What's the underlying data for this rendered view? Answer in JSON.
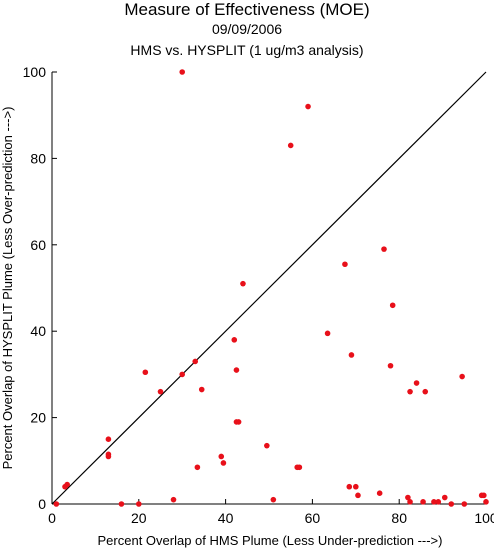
{
  "chart_data": {
    "type": "scatter",
    "title": "Measure of Effectiveness (MOE)",
    "subtitle": "09/09/2006",
    "subtitle2": "HMS vs. HYSPLIT  (1 ug/m3 analysis)",
    "xlabel": "Percent Overlap of HMS Plume (Less Under-prediction --->)",
    "ylabel": "Percent Overlap of HYSPLIT Plume (Less Over-prediction --->)",
    "xlim": [
      0,
      100
    ],
    "ylim": [
      0,
      100
    ],
    "xticks": [
      0,
      20,
      40,
      60,
      80,
      100
    ],
    "yticks": [
      0,
      20,
      40,
      60,
      80,
      100
    ],
    "reference_line": "y = x",
    "grid": false,
    "colors": {
      "points": "#e8101a",
      "axis": "#000000",
      "line": "#000000"
    },
    "points": [
      [
        1,
        0
      ],
      [
        3,
        4
      ],
      [
        3.5,
        4.5
      ],
      [
        13,
        15
      ],
      [
        13,
        11.5
      ],
      [
        13,
        11
      ],
      [
        16,
        0
      ],
      [
        20,
        0
      ],
      [
        21.5,
        30.5
      ],
      [
        25,
        26
      ],
      [
        28,
        1
      ],
      [
        30,
        100
      ],
      [
        30,
        30
      ],
      [
        33,
        33
      ],
      [
        33.5,
        8.5
      ],
      [
        34.5,
        26.5
      ],
      [
        39,
        11
      ],
      [
        39.5,
        9.5
      ],
      [
        42,
        38
      ],
      [
        42.5,
        31
      ],
      [
        42.5,
        19
      ],
      [
        43,
        19
      ],
      [
        44,
        51
      ],
      [
        49.5,
        13.5
      ],
      [
        51,
        1
      ],
      [
        55,
        83
      ],
      [
        56.5,
        8.5
      ],
      [
        57,
        8.5
      ],
      [
        59,
        92
      ],
      [
        63.5,
        39.5
      ],
      [
        67.5,
        55.5
      ],
      [
        68.5,
        4
      ],
      [
        69,
        34.5
      ],
      [
        70,
        4
      ],
      [
        70.5,
        2
      ],
      [
        75.5,
        2.5
      ],
      [
        76.5,
        59
      ],
      [
        78,
        32
      ],
      [
        78.5,
        46
      ],
      [
        82,
        1.5
      ],
      [
        82.5,
        0.5
      ],
      [
        82.5,
        26
      ],
      [
        84,
        28
      ],
      [
        85.5,
        0.5
      ],
      [
        86,
        26
      ],
      [
        88,
        0.5
      ],
      [
        89,
        0.5
      ],
      [
        90.5,
        1.5
      ],
      [
        92,
        0
      ],
      [
        94.5,
        29.5
      ],
      [
        95,
        0
      ],
      [
        99,
        2
      ],
      [
        99.5,
        2
      ],
      [
        100,
        0.5
      ]
    ]
  }
}
